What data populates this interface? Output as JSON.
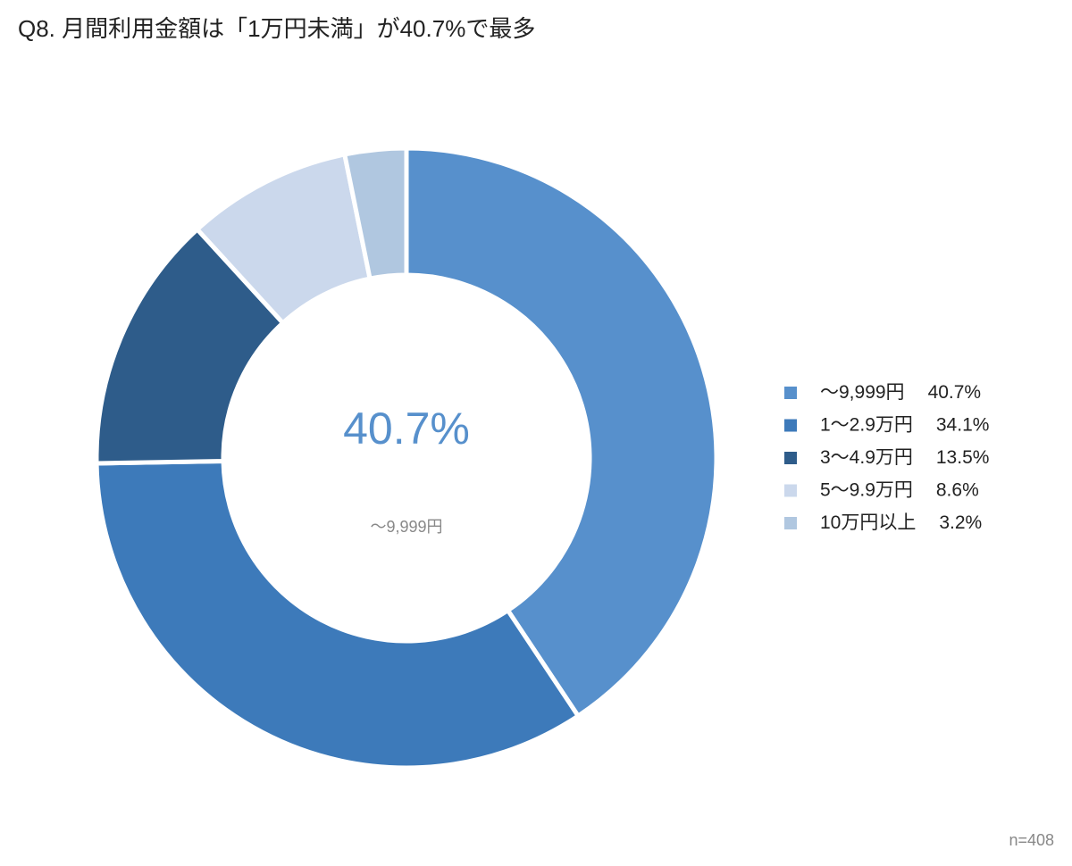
{
  "chart_data": {
    "type": "donut",
    "title": "Q8. 月間利用金額は「1万円未満」が40.7%で最多",
    "categories": [
      "～9,999円",
      "1～2.9万円",
      "3～4.9万円",
      "5～9.9万円",
      "10万円以上"
    ],
    "values": [
      40.7,
      34.1,
      13.5,
      8.6,
      3.2
    ],
    "value_labels": [
      "40.7%",
      "34.1%",
      "13.5%",
      "8.6%",
      "3.2%"
    ],
    "colors": [
      "#5790cc",
      "#3d7aba",
      "#2e5c8a",
      "#cbd8ec",
      "#b0c7e0"
    ],
    "legend": "right",
    "note": "n=408"
  }
}
